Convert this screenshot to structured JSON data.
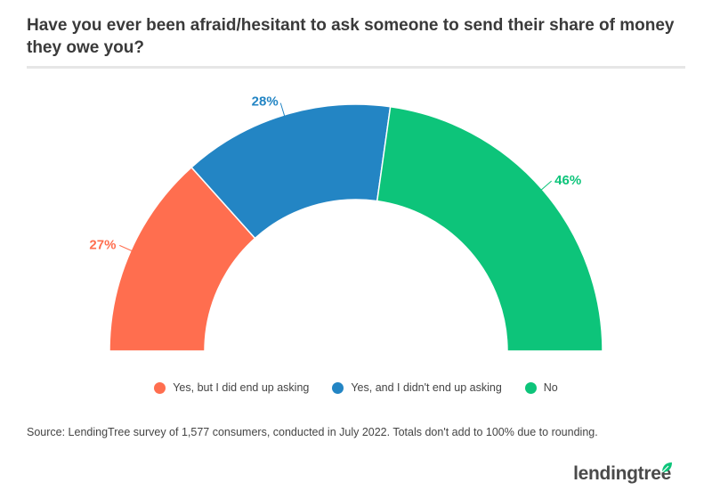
{
  "title": "Have you ever been afraid/hesitant to ask someone to send their share of money they owe you?",
  "source": "Source: LendingTree survey of 1,577 consumers, conducted in July 2022. Totals don't add to 100% due to rounding.",
  "logo_text": "lendingtree",
  "colors": {
    "yes_asked": "#ff6e4f",
    "yes_not_asked": "#2385c4",
    "no": "#0dc47a",
    "logo_leaf": "#0dc47a"
  },
  "chart_data": {
    "type": "pie",
    "subtype": "semi-donut",
    "categories": [
      "Yes, but I did end up asking",
      "Yes, and I didn't end up asking",
      "No"
    ],
    "values": [
      27,
      28,
      46
    ],
    "labels": [
      "27%",
      "28%",
      "46%"
    ],
    "legend_position": "bottom"
  }
}
